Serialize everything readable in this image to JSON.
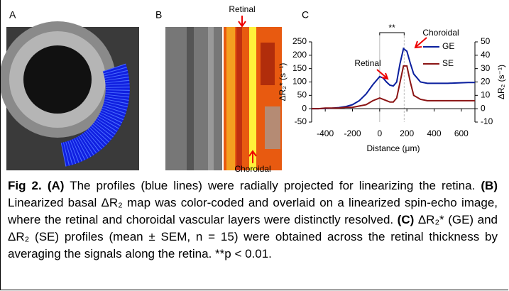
{
  "panels": {
    "a": "A",
    "b": "B",
    "c": "C"
  },
  "panel_b": {
    "top_label": "Retinal",
    "bottom_label": "Choroidal"
  },
  "chart_data": {
    "type": "line",
    "x": [
      -500,
      -450,
      -400,
      -350,
      -300,
      -250,
      -200,
      -150,
      -100,
      -50,
      0,
      25,
      50,
      75,
      100,
      125,
      150,
      175,
      200,
      225,
      250,
      300,
      350,
      400,
      450,
      500,
      550,
      600,
      650,
      700
    ],
    "series": [
      {
        "name": "GE",
        "color": "#0a1f9e",
        "values": [
          0,
          0,
          1,
          2,
          4,
          8,
          15,
          30,
          55,
          90,
          120,
          115,
          100,
          88,
          85,
          100,
          170,
          225,
          215,
          170,
          130,
          100,
          95,
          95,
          95,
          95,
          96,
          97,
          98,
          98
        ]
      },
      {
        "name": "SE",
        "color": "#8b1414",
        "axis": "y2",
        "values": [
          0,
          0,
          0.5,
          0.5,
          0.5,
          1,
          1,
          2,
          3,
          6,
          8,
          7,
          6,
          5,
          5,
          8,
          20,
          32,
          32,
          20,
          10,
          7,
          6,
          6,
          6,
          6,
          6,
          6,
          6,
          6
        ]
      }
    ],
    "xlim": [
      -500,
      700
    ],
    "xticks": [
      -400,
      -200,
      0,
      200,
      400,
      600
    ],
    "ylim": [
      -50,
      250
    ],
    "yticks": [
      -50,
      0,
      50,
      100,
      150,
      200,
      250
    ],
    "y2lim": [
      -10,
      50
    ],
    "y2ticks": [
      -10,
      0,
      10,
      20,
      30,
      40,
      50
    ],
    "xlabel": "Distance (μm)",
    "ylabel": "ΔR₂* (s⁻¹)",
    "y2label": "ΔR₂ (s⁻¹)",
    "annotations": [
      "Retinal",
      "Choroidal",
      "**"
    ]
  },
  "caption": {
    "label": "Fig 2.",
    "parts": [
      "(A)",
      " The profiles (blue lines) were radially projected for linearizing the retina. ",
      "(B)",
      " Linearized basal ΔR₂ map was color-coded and overlaid on a linearized spin-echo image, where the retinal and choroidal vascular layers were distinctly resolved. ",
      "(C)",
      " ΔR₂* (GE) and ΔR₂ (SE) profiles (mean ± SEM, n = 15) were obtained across the retinal thickness by averaging the signals along the retina. **p < 0.01."
    ]
  }
}
